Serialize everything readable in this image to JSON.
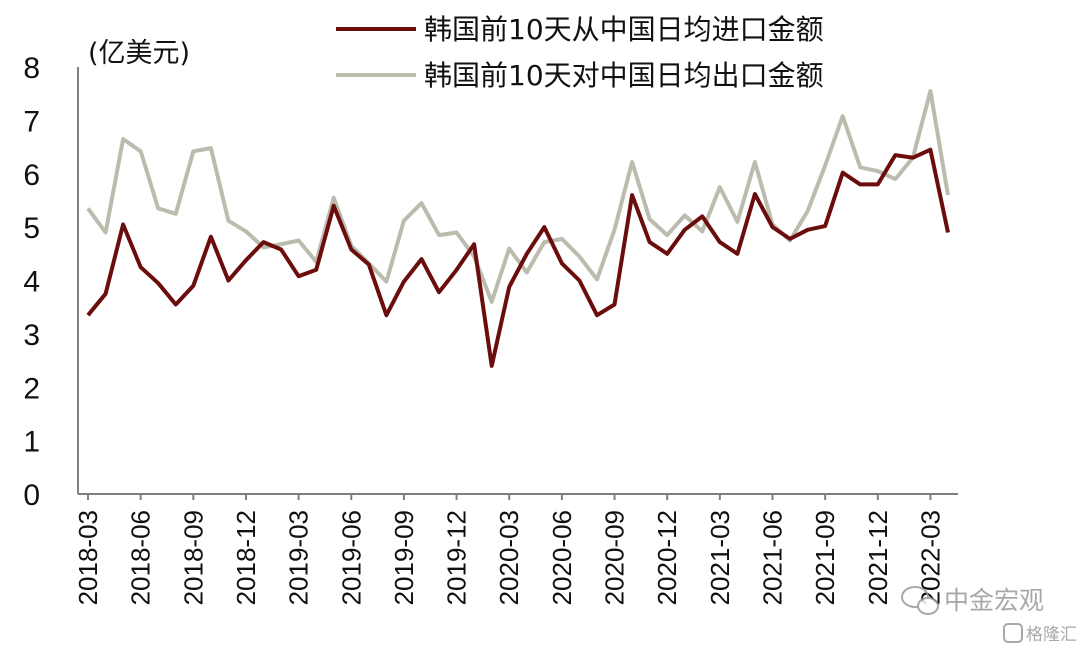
{
  "chart_data": {
    "type": "line",
    "unit_label": "(亿美元)",
    "ylim": [
      0,
      8
    ],
    "yticks": [
      "0",
      "1",
      "2",
      "3",
      "4",
      "5",
      "6",
      "7",
      "8"
    ],
    "grid": false,
    "legend_position": "top-right",
    "x": [
      "2018-03",
      "2018-04",
      "2018-05",
      "2018-06",
      "2018-07",
      "2018-08",
      "2018-09",
      "2018-10",
      "2018-11",
      "2018-12",
      "2019-01",
      "2019-02",
      "2019-03",
      "2019-04",
      "2019-05",
      "2019-06",
      "2019-07",
      "2019-08",
      "2019-09",
      "2019-10",
      "2019-11",
      "2019-12",
      "2020-01",
      "2020-02",
      "2020-03",
      "2020-04",
      "2020-05",
      "2020-06",
      "2020-07",
      "2020-08",
      "2020-09",
      "2020-10",
      "2020-11",
      "2020-12",
      "2021-01",
      "2021-02",
      "2021-03",
      "2021-04",
      "2021-05",
      "2021-06",
      "2021-07",
      "2021-08",
      "2021-09",
      "2021-10",
      "2021-11",
      "2021-12",
      "2022-01",
      "2022-02",
      "2022-03",
      "2022-04"
    ],
    "xtick_labels": [
      "2018-03",
      "2018-06",
      "2018-09",
      "2018-12",
      "2019-03",
      "2019-06",
      "2019-09",
      "2019-12",
      "2020-03",
      "2020-06",
      "2020-09",
      "2020-12",
      "2021-03",
      "2021-06",
      "2021-09",
      "2021-12",
      "2022-03"
    ],
    "series": [
      {
        "name": "韩国前10天从中国日均进口金额",
        "color": "#6b0d0d",
        "values": [
          3.35,
          3.75,
          5.05,
          4.25,
          3.95,
          3.55,
          3.9,
          4.82,
          4.0,
          4.38,
          4.72,
          4.58,
          4.08,
          4.2,
          5.4,
          4.58,
          4.3,
          3.35,
          3.98,
          4.4,
          3.78,
          4.2,
          4.68,
          2.4,
          3.88,
          4.5,
          5.0,
          4.32,
          4.0,
          3.35,
          3.55,
          5.6,
          4.72,
          4.5,
          4.95,
          5.2,
          4.72,
          4.5,
          5.62,
          5.0,
          4.78,
          4.95,
          5.02,
          6.02,
          5.8,
          5.8,
          6.35,
          6.3,
          6.45,
          4.9
        ]
      },
      {
        "name": "韩国前10天对中国日均出口金额",
        "color": "#bcbcae",
        "values": [
          5.35,
          4.9,
          6.65,
          6.42,
          5.35,
          5.25,
          6.42,
          6.48,
          5.12,
          4.92,
          4.62,
          4.68,
          4.75,
          4.35,
          5.55,
          4.65,
          4.32,
          3.98,
          5.12,
          5.45,
          4.85,
          4.9,
          4.45,
          3.6,
          4.6,
          4.15,
          4.72,
          4.78,
          4.45,
          4.02,
          4.95,
          6.22,
          5.15,
          4.85,
          5.22,
          4.92,
          5.75,
          5.1,
          6.22,
          5.05,
          4.75,
          5.3,
          6.15,
          7.08,
          6.12,
          6.05,
          5.9,
          6.3,
          7.55,
          5.6
        ]
      }
    ]
  },
  "watermarks": {
    "wechat_account": "中金宏观",
    "site": "格隆汇"
  }
}
